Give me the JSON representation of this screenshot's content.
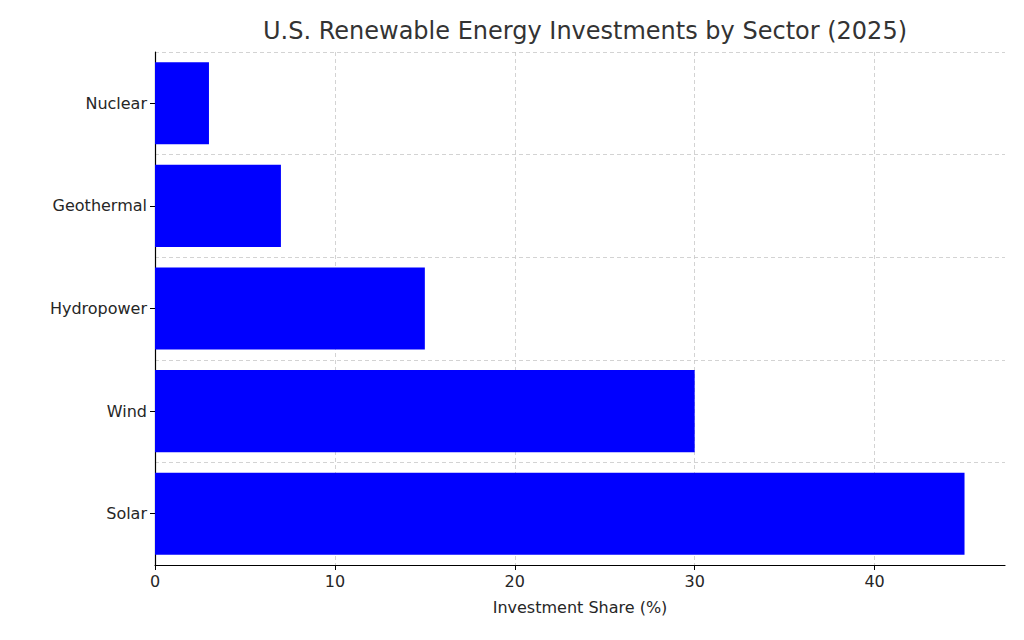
{
  "chart_data": {
    "type": "bar",
    "orientation": "horizontal",
    "title": "U.S. Renewable Energy Investments by Sector (2025)",
    "xlabel": "Investment Share (%)",
    "categories": [
      "Solar",
      "Wind",
      "Hydropower",
      "Geothermal",
      "Nuclear"
    ],
    "values": [
      45,
      30,
      15,
      7,
      3
    ],
    "color": "#0000ff",
    "xlim": [
      0,
      47.25
    ],
    "xticks": [
      0,
      10,
      20,
      30,
      40
    ],
    "grid": true
  }
}
